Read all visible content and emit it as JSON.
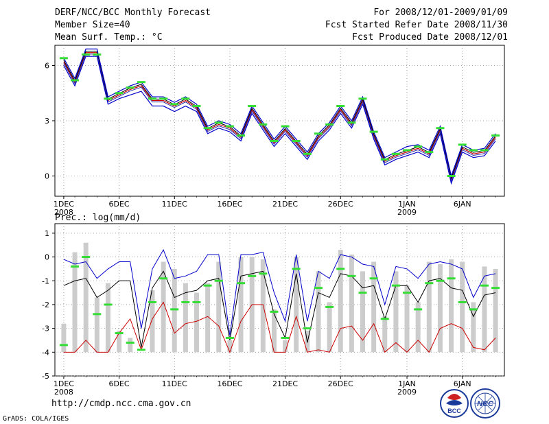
{
  "header": {
    "title": "DERF/NCC/BCC Monthly Forecast",
    "member_size": "Member Size=40",
    "temp_label": "Mean Surf. Temp.: °C",
    "for_range": "For 2008/12/01-2009/01/09",
    "fcst_started": "Fcst Started Refer Date 2008/11/30",
    "fcst_produced": "Fcst Produced Date 2008/12/01"
  },
  "footer": {
    "url": "http://cmdp.ncc.cma.gov.cn",
    "grads": "GrADS: COLA/IGES",
    "logo_bcc": "BCC",
    "logo_ncc": "NCC"
  },
  "colors": {
    "mean": "#cc0000",
    "max": "#0000cc",
    "min": "#cc0000",
    "marker": "#33dd33",
    "bar": "#cccccc",
    "grid": "#888888"
  },
  "chart_data": [
    {
      "type": "line",
      "title": "Mean Surf. Temp.: °C",
      "x_tick_labels": [
        "1DEC",
        "6DEC",
        "11DEC",
        "16DEC",
        "21DEC",
        "26DEC",
        "1JAN",
        "6JAN"
      ],
      "x_tick_days": [
        1,
        6,
        11,
        16,
        21,
        26,
        32,
        37
      ],
      "x_year_labels": [
        {
          "day": 1,
          "text": "2008"
        },
        {
          "day": 32,
          "text": "2009"
        }
      ],
      "ylim": [
        -1.1,
        7.1
      ],
      "y_ticks": [
        0,
        3,
        6
      ],
      "days": [
        1,
        2,
        3,
        4,
        5,
        6,
        7,
        8,
        9,
        10,
        11,
        12,
        13,
        14,
        15,
        16,
        17,
        18,
        19,
        20,
        21,
        22,
        23,
        24,
        25,
        26,
        27,
        28,
        29,
        30,
        31,
        32,
        33,
        34,
        35,
        36,
        37,
        38,
        39,
        40
      ],
      "series": [
        {
          "name": "ensemble mean",
          "values": [
            6.2,
            5.1,
            6.7,
            6.7,
            4.1,
            4.4,
            4.7,
            4.9,
            4.1,
            4.1,
            3.8,
            4.1,
            3.7,
            2.5,
            2.8,
            2.6,
            2.1,
            3.6,
            2.7,
            1.8,
            2.5,
            1.8,
            1.1,
            2.1,
            2.7,
            3.6,
            2.8,
            4.1,
            2.2,
            0.8,
            1.1,
            1.3,
            1.5,
            1.2,
            2.5,
            -0.2,
            1.5,
            1.2,
            1.3,
            2.1
          ]
        },
        {
          "name": "member max",
          "values": [
            6.4,
            5.3,
            6.9,
            6.9,
            4.3,
            4.6,
            4.9,
            5.1,
            4.3,
            4.3,
            4.0,
            4.3,
            3.9,
            2.7,
            3.0,
            2.8,
            2.3,
            3.8,
            2.9,
            2.0,
            2.7,
            2.0,
            1.3,
            2.3,
            2.9,
            3.8,
            3.0,
            4.3,
            2.4,
            1.0,
            1.3,
            1.6,
            1.7,
            1.4,
            2.7,
            0.0,
            1.7,
            1.4,
            1.5,
            2.3
          ]
        },
        {
          "name": "member min",
          "values": [
            6.0,
            4.9,
            6.5,
            6.5,
            3.9,
            4.2,
            4.4,
            4.6,
            3.8,
            3.8,
            3.5,
            3.8,
            3.5,
            2.3,
            2.6,
            2.4,
            1.9,
            3.4,
            2.5,
            1.6,
            2.3,
            1.6,
            0.9,
            1.9,
            2.5,
            3.4,
            2.6,
            3.9,
            2.0,
            0.6,
            0.9,
            1.1,
            1.3,
            1.0,
            2.3,
            -0.4,
            1.3,
            1.0,
            1.1,
            1.9
          ]
        },
        {
          "name": "observed/climate marker",
          "values": [
            6.4,
            5.2,
            6.6,
            6.6,
            4.2,
            4.5,
            4.8,
            5.1,
            4.2,
            4.2,
            3.9,
            4.2,
            3.8,
            2.6,
            2.9,
            2.7,
            2.2,
            3.8,
            2.8,
            1.9,
            2.7,
            1.9,
            1.2,
            2.3,
            2.8,
            3.8,
            2.9,
            4.2,
            2.4,
            0.9,
            1.2,
            1.4,
            1.6,
            1.3,
            2.6,
            0.0,
            1.7,
            1.4,
            1.4,
            2.2
          ]
        }
      ]
    },
    {
      "type": "line",
      "title": "Prec.: log(mm/d)",
      "x_tick_labels": [
        "1DEC",
        "6DEC",
        "11DEC",
        "16DEC",
        "21DEC",
        "26DEC",
        "1JAN",
        "6JAN"
      ],
      "x_tick_days": [
        1,
        6,
        11,
        16,
        21,
        26,
        32,
        37
      ],
      "x_year_labels": [
        {
          "day": 1,
          "text": "2008"
        },
        {
          "day": 32,
          "text": "2009"
        }
      ],
      "ylim": [
        -5,
        1.4
      ],
      "y_ticks": [
        -5,
        -4,
        -3,
        -2,
        -1,
        0,
        1
      ],
      "days": [
        1,
        2,
        3,
        4,
        5,
        6,
        7,
        8,
        9,
        10,
        11,
        12,
        13,
        14,
        15,
        16,
        17,
        18,
        19,
        20,
        21,
        22,
        23,
        24,
        25,
        26,
        27,
        28,
        29,
        30,
        31,
        32,
        33,
        34,
        35,
        36,
        37,
        38,
        39,
        40
      ],
      "bars_baseline": -4,
      "bars": [
        -2.8,
        0.2,
        0.6,
        -1.7,
        -1.1,
        -3.1,
        -3.4,
        -4.0,
        -1.4,
        -0.2,
        -0.5,
        -1.1,
        -1.5,
        -1.1,
        -0.2,
        -3.5,
        0.0,
        0.0,
        -0.1,
        -2.2,
        -3.5,
        0.0,
        -3.1,
        -0.6,
        -1.9,
        0.3,
        0.1,
        -0.6,
        -0.2,
        -2.5,
        -0.6,
        -1.2,
        -1.9,
        -0.2,
        -0.3,
        -0.1,
        -0.2,
        -1.9,
        -0.4,
        -0.5
      ],
      "series": [
        {
          "name": "member max",
          "values": [
            -0.1,
            -0.3,
            -0.2,
            -0.9,
            -0.5,
            -0.2,
            -0.2,
            -3.0,
            -0.5,
            0.3,
            -0.9,
            -0.8,
            -0.6,
            0.1,
            0.1,
            -3.3,
            0.1,
            0.1,
            0.2,
            -1.5,
            -2.7,
            0.1,
            -2.7,
            -0.6,
            -0.9,
            0.1,
            0.0,
            -0.3,
            -0.4,
            -2.0,
            -0.4,
            -0.5,
            -0.9,
            -0.3,
            -0.2,
            -0.3,
            -0.5,
            -1.7,
            -0.8,
            -0.7
          ]
        },
        {
          "name": "ensemble mean",
          "values": [
            -1.2,
            -1.0,
            -0.9,
            -1.7,
            -1.4,
            -1.0,
            -1.0,
            -3.8,
            -1.3,
            -0.6,
            -1.7,
            -1.5,
            -1.4,
            -1.0,
            -0.9,
            -3.5,
            -0.8,
            -0.7,
            -0.6,
            -2.4,
            -3.4,
            -0.7,
            -3.6,
            -1.5,
            -1.7,
            -0.7,
            -0.8,
            -1.3,
            -1.2,
            -2.6,
            -1.2,
            -1.2,
            -1.9,
            -1.0,
            -0.9,
            -1.3,
            -1.4,
            -2.5,
            -1.6,
            -1.5
          ]
        },
        {
          "name": "member min",
          "values": [
            -4.0,
            -4.0,
            -3.5,
            -4.0,
            -4.0,
            -3.2,
            -2.6,
            -3.9,
            -2.6,
            -1.9,
            -3.2,
            -2.8,
            -2.7,
            -2.5,
            -2.9,
            -4.0,
            -2.7,
            -2.0,
            -2.0,
            -4.0,
            -4.0,
            -2.5,
            -4.0,
            -3.9,
            -4.0,
            -3.0,
            -2.9,
            -3.5,
            -2.8,
            -4.0,
            -3.6,
            -4.0,
            -3.5,
            -4.0,
            -3.0,
            -2.8,
            -3.0,
            -3.8,
            -3.9,
            -3.4
          ]
        },
        {
          "name": "observed/climate marker",
          "values": [
            -3.7,
            -0.4,
            0.0,
            -2.4,
            -2.0,
            -3.2,
            -3.6,
            -3.9,
            -1.9,
            -0.9,
            -2.2,
            -1.9,
            -1.9,
            -1.2,
            -1.0,
            -3.4,
            -1.1,
            -0.8,
            -0.7,
            -2.3,
            -3.4,
            -0.5,
            -3.0,
            -1.3,
            -2.1,
            -0.5,
            -0.8,
            -1.5,
            -0.9,
            -2.6,
            -1.2,
            -1.5,
            -2.2,
            -1.1,
            -1.0,
            -0.9,
            -1.9,
            -2.2,
            -1.2,
            -1.3
          ]
        }
      ]
    }
  ]
}
